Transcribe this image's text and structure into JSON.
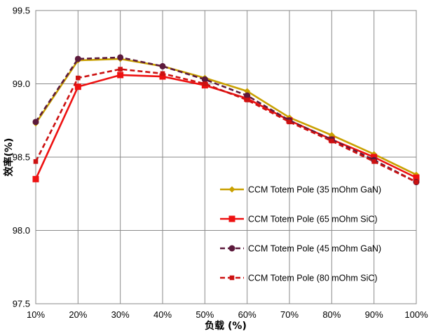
{
  "chart_data": {
    "type": "line",
    "title": "",
    "xlabel": "负载 (%)",
    "ylabel": "效率(%)",
    "categories": [
      "10%",
      "20%",
      "30%",
      "40%",
      "50%",
      "60%",
      "70%",
      "80%",
      "90%",
      "100%"
    ],
    "y_ticks": [
      "97.5",
      "98.0",
      "98.5",
      "99.0",
      "99.5"
    ],
    "ylim": [
      97.5,
      99.5
    ],
    "grid": true,
    "legend_position": "right",
    "series": [
      {
        "name": "CCM Totem Pole (35 mOhm GaN)",
        "color": "#C9A000",
        "dash": "solid",
        "marker": "diamond",
        "values": [
          98.73,
          99.16,
          99.17,
          99.12,
          99.04,
          98.95,
          98.77,
          98.65,
          98.52,
          98.38
        ]
      },
      {
        "name": "CCM Totem Pole (65 mOhm SiC)",
        "color": "#EE1111",
        "dash": "solid",
        "marker": "square",
        "values": [
          98.35,
          98.98,
          99.06,
          99.05,
          98.99,
          98.9,
          98.75,
          98.62,
          98.5,
          98.36
        ]
      },
      {
        "name": "CCM Totem Pole (45 mOhm GaN)",
        "color": "#5C1A3C",
        "dash": "dashed",
        "marker": "circle",
        "values": [
          98.74,
          99.17,
          99.18,
          99.12,
          99.03,
          98.92,
          98.75,
          98.62,
          98.48,
          98.33
        ]
      },
      {
        "name": "CCM Totem Pole (80 mOhm SiC)",
        "color": "#CC1111",
        "dash": "dashed",
        "marker": "square-small",
        "values": [
          98.47,
          99.04,
          99.1,
          99.07,
          99.0,
          98.89,
          98.74,
          98.61,
          98.47,
          98.33
        ]
      }
    ]
  }
}
